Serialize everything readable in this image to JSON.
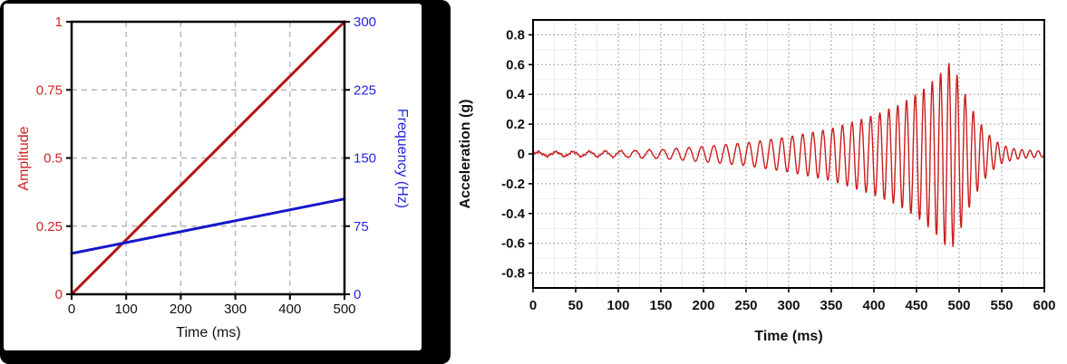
{
  "chart_data": [
    {
      "id": "amplitude-frequency-ramp",
      "type": "line",
      "xlabel": "Time (ms)",
      "ylabel_left": "Amplitude",
      "ylabel_right": "Frequency (Hz)",
      "xlim": [
        0,
        500
      ],
      "ylim_left": [
        0,
        1
      ],
      "ylim_right": [
        0,
        300
      ],
      "x_ticks": [
        0,
        100,
        200,
        300,
        400,
        500
      ],
      "y_ticks_left": [
        0,
        0.25,
        0.5,
        0.75,
        1
      ],
      "y_ticks_right": [
        0,
        75,
        150,
        225,
        300
      ],
      "grid_style": "dashed",
      "frame_color": "#000000",
      "series": [
        {
          "name": "Amplitude",
          "axis": "left",
          "color": "#b81212",
          "x": [
            0,
            500
          ],
          "y": [
            0,
            1
          ]
        },
        {
          "name": "Frequency (Hz)",
          "axis": "right",
          "color": "#1717c8",
          "x": [
            0,
            500
          ],
          "y": [
            45,
            105
          ]
        }
      ],
      "colors": {
        "left_axis_text": "#cf2626",
        "right_axis_text": "#2525e0",
        "x_axis_text": "#111111",
        "grid": "#b5b5b5",
        "axis_box": "#000000"
      }
    },
    {
      "id": "acceleration-chirp",
      "type": "line",
      "xlabel": "Time (ms)",
      "ylabel": "Acceleration (g)",
      "xlim": [
        0,
        600
      ],
      "ylim": [
        -0.9,
        0.9
      ],
      "x_ticks": [
        0,
        50,
        100,
        150,
        200,
        250,
        300,
        350,
        400,
        450,
        500,
        550,
        600
      ],
      "y_ticks": [
        0.8,
        0.6,
        0.4,
        0.2,
        0,
        -0.2,
        -0.4,
        -0.6,
        -0.8
      ],
      "x_minor_step_ms": 25,
      "y_minor_step_g": 0.1,
      "grid_style_major": "dotted",
      "grid_style_minor": "solid-light",
      "signal": {
        "kind": "chirp",
        "color": "#cc1d1d",
        "freq_hz": {
          "start": 45,
          "end": 105,
          "sweep_end_ms": 500
        },
        "peak_g": 0.62,
        "peak_neg_g": -0.65,
        "peak_time_ms": 490,
        "envelope_g_points": [
          [
            0,
            0.012
          ],
          [
            50,
            0.015
          ],
          [
            100,
            0.02
          ],
          [
            150,
            0.03
          ],
          [
            200,
            0.05
          ],
          [
            250,
            0.075
          ],
          [
            300,
            0.115
          ],
          [
            350,
            0.17
          ],
          [
            400,
            0.26
          ],
          [
            430,
            0.33
          ],
          [
            455,
            0.42
          ],
          [
            475,
            0.52
          ],
          [
            490,
            0.62
          ],
          [
            500,
            0.5
          ],
          [
            510,
            0.36
          ],
          [
            520,
            0.25
          ],
          [
            530,
            0.16
          ],
          [
            540,
            0.1
          ],
          [
            550,
            0.06
          ],
          [
            565,
            0.035
          ],
          [
            580,
            0.025
          ],
          [
            600,
            0.02
          ]
        ]
      },
      "colors": {
        "axis_text": "#111111",
        "grid_major": "#9a9a9a",
        "grid_minor": "#ececec",
        "axis_box": "#000000"
      }
    }
  ]
}
